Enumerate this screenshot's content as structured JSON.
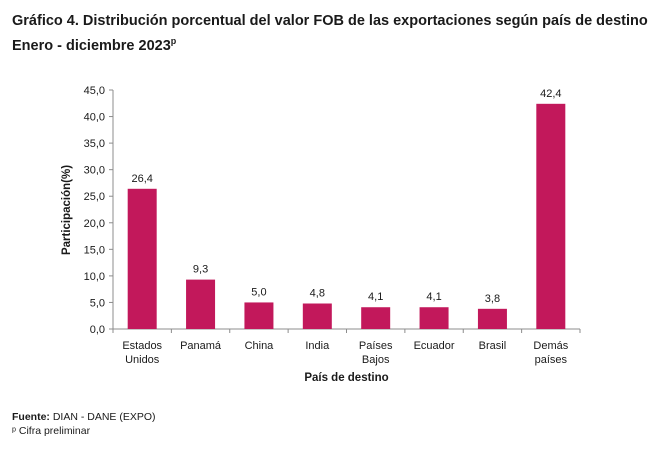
{
  "title_line1": "Gráfico 4. Distribución porcentual del valor FOB de las exportaciones según país de destino",
  "title_line2": "Enero - diciembre 2023",
  "title_superscript": "p",
  "source_label": "Fuente:",
  "source_text": "DIAN - DANE (EXPO)",
  "footnote": "ᵖ Cifra preliminar",
  "bar_color": "#c2185b",
  "chart_data": {
    "type": "bar",
    "title": "Gráfico 4. Distribución porcentual del valor FOB de las exportaciones según país de destino",
    "xlabel": "País de destino",
    "ylabel": "Participación(%)",
    "ylim": [
      0,
      45
    ],
    "yticks": [
      "0,0",
      "5,0",
      "10,0",
      "15,0",
      "20,0",
      "25,0",
      "30,0",
      "35,0",
      "40,0",
      "45,0"
    ],
    "grid": false,
    "categories": [
      [
        "Estados",
        "Unidos"
      ],
      [
        "Panamá"
      ],
      [
        "China"
      ],
      [
        "India"
      ],
      [
        "Países",
        "Bajos"
      ],
      [
        "Ecuador"
      ],
      [
        "Brasil"
      ],
      [
        "Demás",
        "países"
      ]
    ],
    "values": [
      26.4,
      9.3,
      5.0,
      4.8,
      4.1,
      4.1,
      3.8,
      42.4
    ],
    "data_labels": [
      "26,4",
      "9,3",
      "5,0",
      "4,8",
      "4,1",
      "4,1",
      "3,8",
      "42,4"
    ]
  }
}
